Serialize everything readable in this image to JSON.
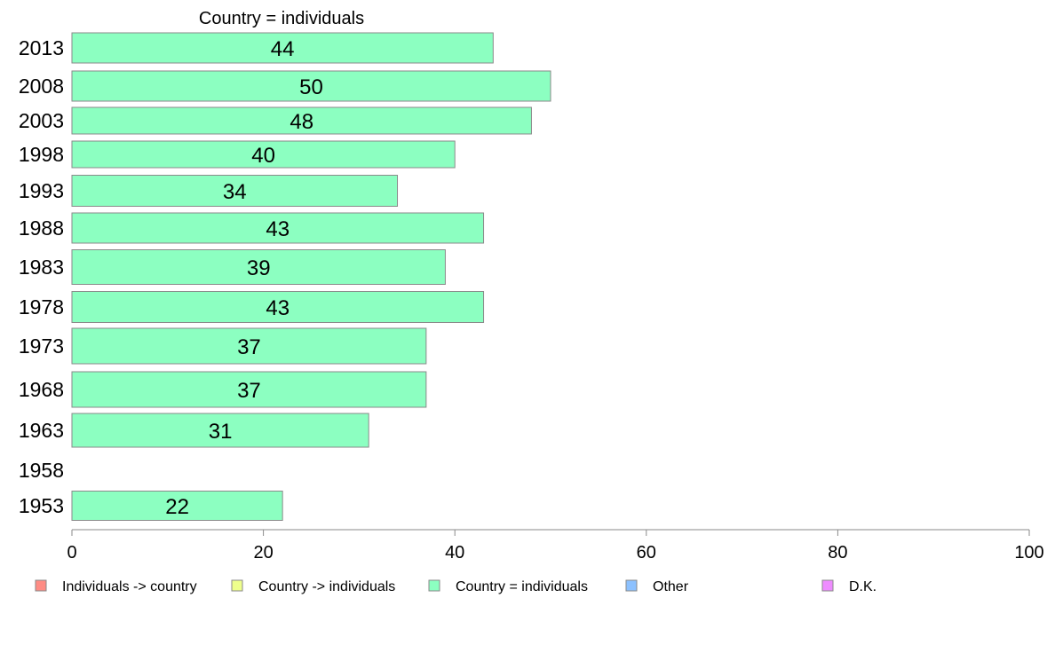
{
  "chart_data": {
    "type": "bar",
    "orientation": "horizontal",
    "title": "Country = individuals",
    "categories": [
      "2013",
      "2008",
      "2003",
      "1998",
      "1993",
      "1988",
      "1983",
      "1978",
      "1973",
      "1968",
      "1963",
      "1958",
      "1953"
    ],
    "values": [
      44,
      50,
      48,
      40,
      34,
      43,
      39,
      43,
      37,
      37,
      31,
      null,
      22
    ],
    "data_labels": [
      "44",
      "50",
      "48",
      "40",
      "34",
      "43",
      "39",
      "43",
      "37",
      "37",
      "31",
      "",
      "22"
    ],
    "xlim": [
      0,
      100
    ],
    "x_ticks": [
      "0",
      "20",
      "40",
      "60",
      "80",
      "100"
    ],
    "bar_color": "#8cffc1",
    "legend_position": "bottom",
    "legend": [
      {
        "label": "Individuals -> country",
        "color": "#ff8c84"
      },
      {
        "label": "Country -> individuals",
        "color": "#eeff8c"
      },
      {
        "label": "Country = individuals",
        "color": "#8cffc1"
      },
      {
        "label": "Other",
        "color": "#8cc1ff"
      },
      {
        "label": "D.K.",
        "color": "#ee8cff"
      }
    ]
  }
}
